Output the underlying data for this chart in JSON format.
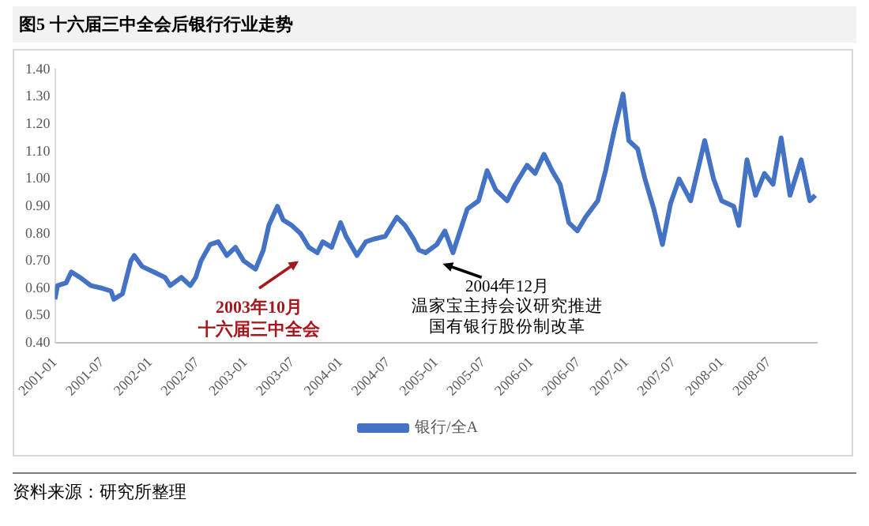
{
  "chart_data": {
    "type": "line",
    "title": "图5  十六届三中全会后银行行业走势",
    "x": [
      "2001-01-01",
      "2001-01-11",
      "2001-02-13",
      "2001-03-05",
      "2001-04-07",
      "2001-05-19",
      "2001-07-02",
      "2001-08-04",
      "2001-08-15",
      "2001-09-17",
      "2001-10-19",
      "2001-11-01",
      "2001-12-01",
      "2002-01-14",
      "2002-02-27",
      "2002-03-19",
      "2002-05-01",
      "2002-06-04",
      "2002-06-25",
      "2002-07-15",
      "2002-08-19",
      "2002-09-19",
      "2002-10-22",
      "2002-11-24",
      "2002-12-26",
      "2003-02-09",
      "2003-03-11",
      "2003-04-01",
      "2003-05-04",
      "2003-05-26",
      "2003-06-28",
      "2003-08-01",
      "2003-09-01",
      "2003-10-04",
      "2003-10-25",
      "2003-11-28",
      "2004-01-01",
      "2004-01-22",
      "2004-03-04",
      "2004-04-07",
      "2004-05-07",
      "2004-06-20",
      "2004-08-04",
      "2004-09-04",
      "2004-10-07",
      "2004-10-28",
      "2004-11-22",
      "2005-01-04",
      "2005-02-04",
      "2005-03-07",
      "2005-05-01",
      "2005-06-13",
      "2005-07-16",
      "2005-08-18",
      "2005-10-01",
      "2005-11-01",
      "2005-12-16",
      "2006-01-16",
      "2006-02-19",
      "2006-03-22",
      "2006-04-22",
      "2006-05-25",
      "2006-06-27",
      "2006-07-28",
      "2006-09-13",
      "2006-10-13",
      "2006-11-16",
      "2006-12-19",
      "2007-01-10",
      "2007-02-13",
      "2007-03-13",
      "2007-04-16",
      "2007-05-19",
      "2007-06-19",
      "2007-07-22",
      "2007-09-04",
      "2007-10-28",
      "2007-12-01",
      "2008-01-01",
      "2008-02-16",
      "2008-03-07",
      "2008-04-07",
      "2008-05-10",
      "2008-06-13",
      "2008-07-16",
      "2008-08-16",
      "2008-09-19",
      "2008-11-01",
      "2008-12-04",
      "2008-12-25"
    ],
    "series": [
      {
        "name": "银行/全A",
        "color": "#4472c4",
        "values": [
          0.56,
          0.61,
          0.62,
          0.66,
          0.64,
          0.61,
          0.6,
          0.59,
          0.56,
          0.58,
          0.7,
          0.72,
          0.68,
          0.66,
          0.64,
          0.61,
          0.64,
          0.61,
          0.64,
          0.7,
          0.76,
          0.77,
          0.72,
          0.75,
          0.7,
          0.67,
          0.74,
          0.83,
          0.9,
          0.85,
          0.83,
          0.8,
          0.75,
          0.73,
          0.77,
          0.75,
          0.84,
          0.79,
          0.72,
          0.77,
          0.78,
          0.79,
          0.86,
          0.83,
          0.78,
          0.74,
          0.73,
          0.76,
          0.81,
          0.73,
          0.89,
          0.92,
          1.03,
          0.96,
          0.92,
          0.98,
          1.05,
          1.02,
          1.09,
          1.03,
          0.98,
          0.84,
          0.81,
          0.86,
          0.92,
          1.03,
          1.18,
          1.31,
          1.14,
          1.11,
          1.0,
          0.89,
          0.76,
          0.91,
          1.0,
          0.92,
          1.14,
          1.0,
          0.92,
          0.9,
          0.83,
          1.07,
          0.94,
          1.02,
          0.98,
          1.15,
          0.94,
          1.07,
          0.92,
          0.94
        ]
      }
    ],
    "xlim": [
      "2001-01-01",
      "2008-12-31"
    ],
    "xticks": [
      "2001-01",
      "2001-07",
      "2002-01",
      "2002-07",
      "2003-01",
      "2003-07",
      "2004-01",
      "2004-07",
      "2005-01",
      "2005-07",
      "2006-01",
      "2006-07",
      "2007-01",
      "2007-07",
      "2008-01",
      "2008-07"
    ],
    "ylim": [
      0.4,
      1.4
    ],
    "yticks": [
      {
        "value": 0.4,
        "label": "0.40"
      },
      {
        "value": 0.5,
        "label": "0.50"
      },
      {
        "value": 0.6,
        "label": "0.60"
      },
      {
        "value": 0.7,
        "label": "0.70"
      },
      {
        "value": 0.8,
        "label": "0.80"
      },
      {
        "value": 0.9,
        "label": "0.90"
      },
      {
        "value": 1.0,
        "label": "1.00"
      },
      {
        "value": 1.1,
        "label": "1.10"
      },
      {
        "value": 1.2,
        "label": "1.20"
      },
      {
        "value": 1.3,
        "label": "1.30"
      },
      {
        "value": 1.4,
        "label": "1.40"
      }
    ],
    "legend": "bottom",
    "marker": "none",
    "line_style": "solid",
    "annotations": [
      "2003年10月",
      "十六届三中全会",
      "2004年12月",
      "温家宝主持会议研究推进国有银行股份制改革",
      "资料来源：研究所整理"
    ]
  }
}
